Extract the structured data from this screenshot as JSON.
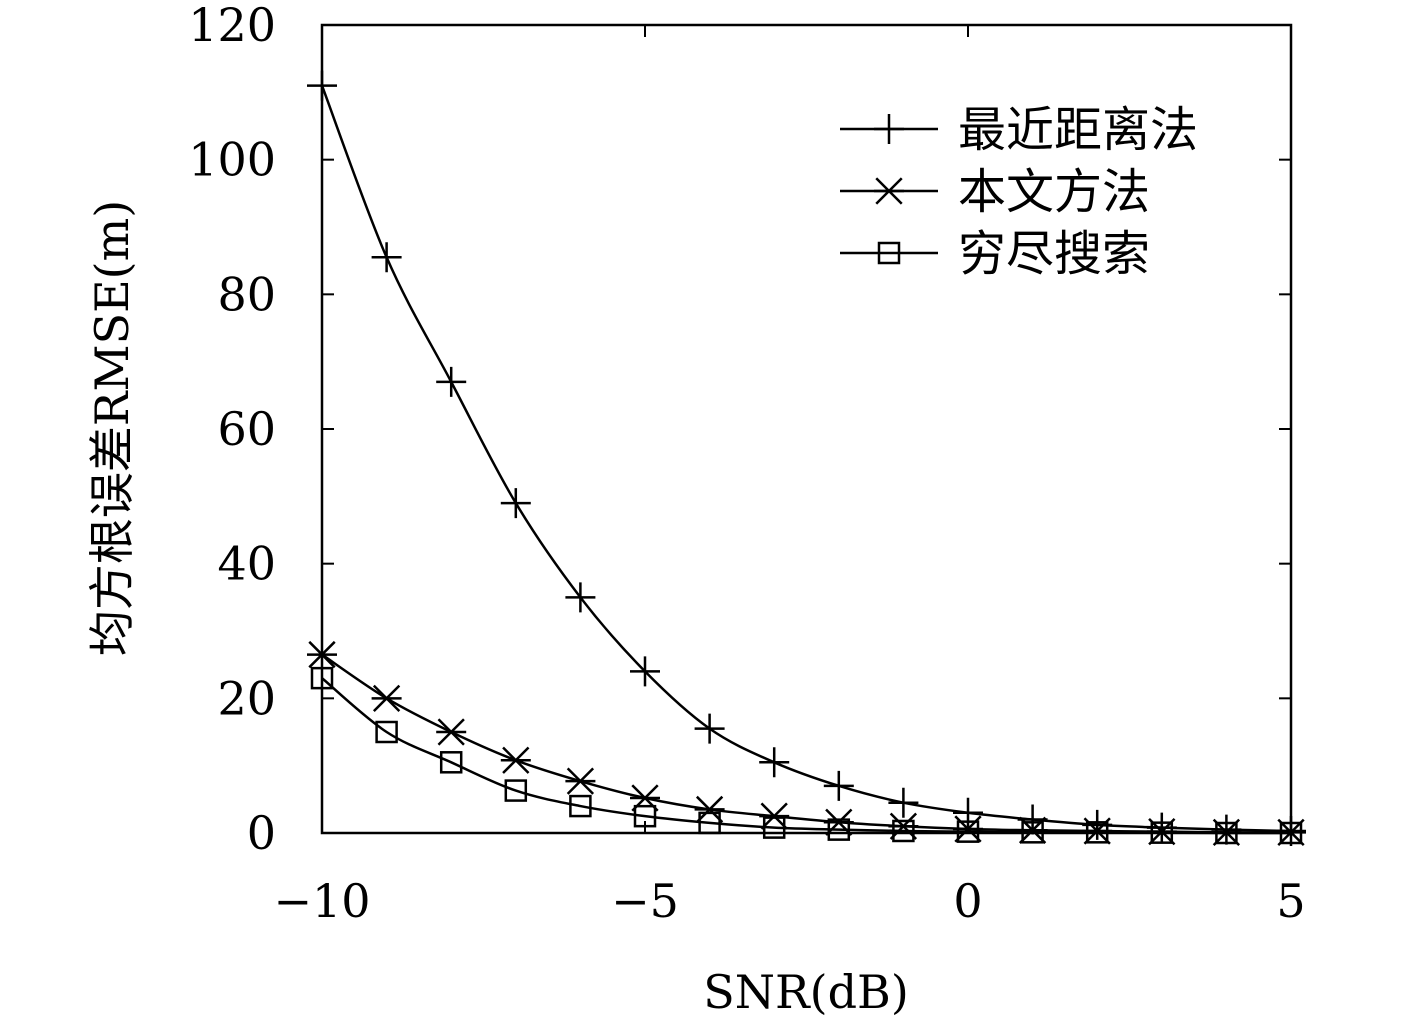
{
  "chart_data": {
    "type": "line",
    "xlabel": "SNR(dB)",
    "ylabel": "均方根误差RMSE(m)",
    "xlim": [
      -10,
      5
    ],
    "ylim": [
      0,
      120
    ],
    "xticks": [
      -10,
      -5,
      0,
      5
    ],
    "xtick_labels": [
      "−10",
      "−5",
      "0",
      "5"
    ],
    "yticks": [
      0,
      20,
      40,
      60,
      80,
      100,
      120
    ],
    "ytick_labels": [
      "0",
      "20",
      "40",
      "60",
      "80",
      "100",
      "120"
    ],
    "grid": false,
    "legend_position": "top-right",
    "x": [
      -10,
      -9,
      -8,
      -7,
      -6,
      -5,
      -4,
      -3,
      -2,
      -1,
      0,
      1,
      2,
      3,
      4,
      5
    ],
    "series": [
      {
        "name": "最近距离法",
        "marker": "plus",
        "values": [
          111,
          85.5,
          67,
          49,
          35,
          24,
          15.5,
          10.5,
          7,
          4.5,
          3,
          2,
          1.2,
          0.8,
          0.5,
          0.3
        ]
      },
      {
        "name": "本文方法",
        "marker": "asterisk",
        "values": [
          26.5,
          20,
          15,
          10.8,
          7.7,
          5.2,
          3.5,
          2.5,
          1.6,
          1,
          0.6,
          0.4,
          0.3,
          0.2,
          0.1,
          0.1
        ]
      },
      {
        "name": "穷尽搜索",
        "marker": "square",
        "values": [
          23,
          15,
          10.5,
          6.3,
          4,
          2.5,
          1.5,
          0.8,
          0.5,
          0.3,
          0.2,
          0.1,
          0.1,
          0.05,
          0,
          0
        ]
      }
    ]
  }
}
